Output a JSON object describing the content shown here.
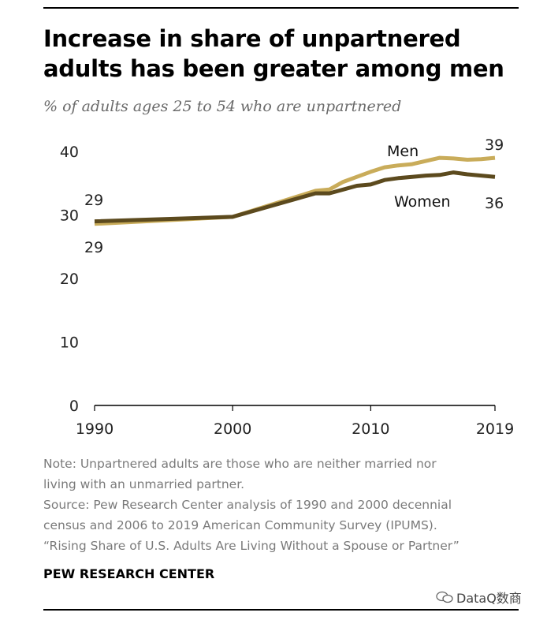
{
  "header": {
    "title": "Increase in share of unpartnered adults has been greater among men",
    "subtitle": "% of adults ages 25 to 54 who are unpartnered"
  },
  "chart_data": {
    "type": "line",
    "title": "Increase in share of unpartnered adults has been greater among men",
    "subtitle": "% of adults ages 25 to 54 who are unpartnered",
    "xlabel": "",
    "ylabel": "",
    "xlim": [
      1990,
      2019
    ],
    "ylim": [
      0,
      40
    ],
    "yticks": [
      0,
      10,
      20,
      30,
      40
    ],
    "xticks": [
      1990,
      2000,
      2010,
      2019
    ],
    "grid": false,
    "legend": "inline labels at right",
    "x": [
      1990,
      2000,
      2006,
      2007,
      2008,
      2009,
      2010,
      2011,
      2012,
      2013,
      2014,
      2015,
      2016,
      2017,
      2018,
      2019
    ],
    "series": [
      {
        "name": "Men",
        "color": "#c9ac5a",
        "values": [
          28.6,
          29.7,
          33.8,
          34.0,
          35.2,
          36.0,
          36.8,
          37.5,
          37.8,
          38.0,
          38.5,
          39.0,
          38.9,
          38.7,
          38.8,
          39.0
        ],
        "label_start": "29",
        "label_end": "39"
      },
      {
        "name": "Women",
        "color": "#5c4a1e",
        "values": [
          29.0,
          29.7,
          33.4,
          33.4,
          34.0,
          34.6,
          34.8,
          35.5,
          35.8,
          36.0,
          36.2,
          36.3,
          36.7,
          36.4,
          36.2,
          36.0
        ],
        "label_start": "29",
        "label_end": "36"
      }
    ]
  },
  "footer": {
    "note_lines": [
      "Note: Unpartnered adults are those who are neither married nor",
      "living with an unmarried partner.",
      "Source: Pew Research Center analysis of 1990 and 2000 decennial",
      "census and 2006 to 2019 American Community Survey (IPUMS).",
      "“Rising Share of U.S. Adults Are Living Without a Spouse or Partner”"
    ],
    "brand": "PEW RESEARCH CENTER",
    "watermark": "DataQ数商"
  }
}
